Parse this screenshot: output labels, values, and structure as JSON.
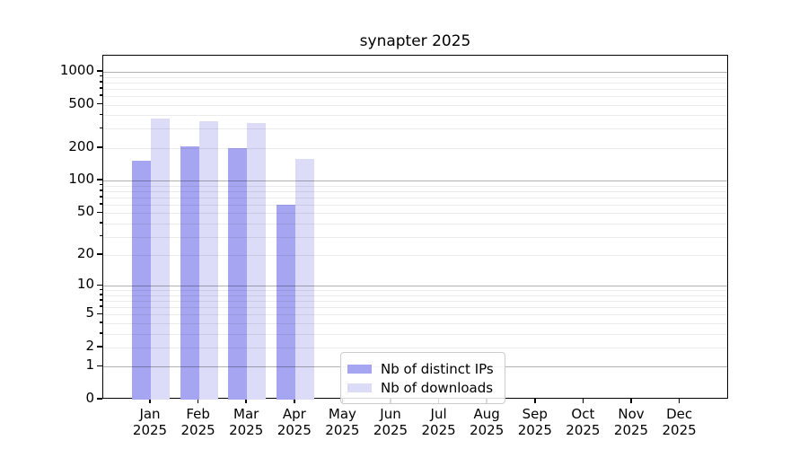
{
  "chart_data": {
    "type": "bar",
    "title": "synapter 2025",
    "categories": [
      "Jan 2025",
      "Feb 2025",
      "Mar 2025",
      "Apr 2025",
      "May 2025",
      "Jun 2025",
      "Jul 2025",
      "Aug 2025",
      "Sep 2025",
      "Oct 2025",
      "Nov 2025",
      "Dec 2025"
    ],
    "series": [
      {
        "name": "Nb of distinct IPs",
        "color": "#a5a5f2",
        "values": [
          154,
          208,
          199,
          60,
          null,
          null,
          null,
          null,
          null,
          null,
          null,
          null
        ]
      },
      {
        "name": "Nb of downloads",
        "color": "#dcdcf8",
        "values": [
          375,
          351,
          340,
          160,
          null,
          null,
          null,
          null,
          null,
          null,
          null,
          null
        ]
      }
    ],
    "xlabel": "",
    "ylabel": "",
    "y_scale": "log1p",
    "ylim": [
      0,
      1400
    ],
    "y_ticks": [
      1000,
      500,
      200,
      100,
      50,
      20,
      10,
      5,
      2,
      1,
      0
    ],
    "y_major_gridlines": [
      1,
      10,
      100,
      1000
    ],
    "grid": true,
    "legend_position": "lower-center"
  },
  "colors": {
    "background": "#ffffff",
    "axis": "#000000",
    "major_grid": "#b0b0b0",
    "minor_grid": "#ebebeb"
  }
}
